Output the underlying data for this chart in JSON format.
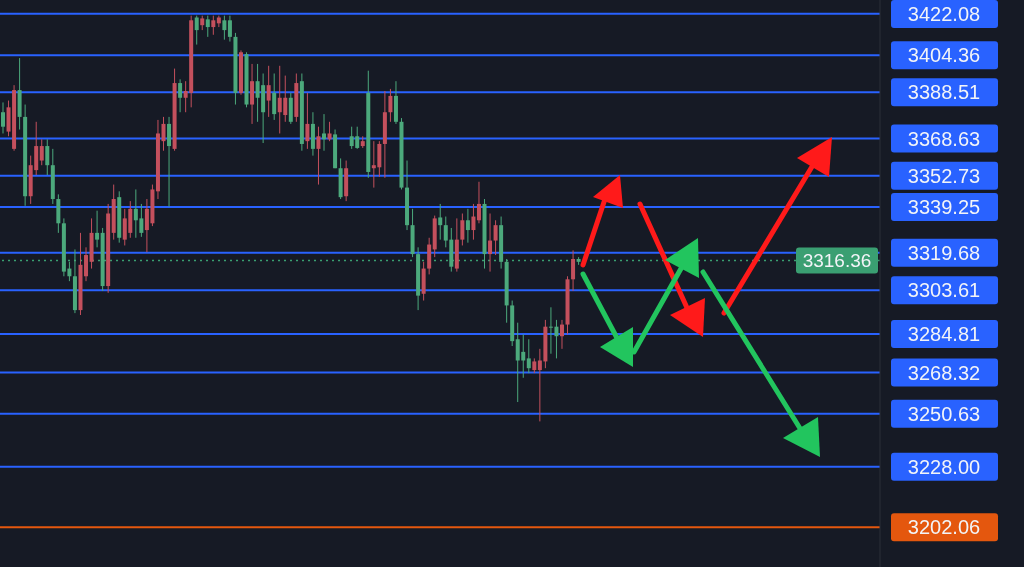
{
  "chart_data": {
    "type": "candlestick",
    "categories": [
      null,
      null,
      null,
      null,
      null,
      null,
      null,
      null,
      null,
      null,
      null,
      null,
      null,
      null,
      null,
      null,
      null,
      null,
      null,
      null,
      null,
      null,
      null,
      null,
      null,
      null,
      null,
      null,
      null,
      null,
      null,
      null,
      null,
      null,
      null,
      null,
      null,
      null,
      null,
      null,
      null,
      null,
      null,
      null,
      null,
      null,
      null,
      null,
      null,
      null,
      null,
      null,
      null,
      null,
      null,
      null,
      null,
      null,
      null,
      null,
      null,
      null,
      null,
      null,
      null,
      null,
      null,
      null,
      null,
      null,
      null,
      null,
      null,
      null,
      null,
      null,
      null,
      null,
      null,
      null,
      null,
      null,
      null,
      null,
      null,
      null,
      null,
      null,
      null,
      null,
      null,
      null,
      null,
      null,
      null,
      null,
      null,
      null,
      null,
      null,
      null,
      null,
      null,
      null,
      null,
      null,
      null,
      null,
      null,
      null,
      null,
      null,
      null,
      null,
      null,
      null,
      null,
      null,
      null,
      null,
      null,
      null,
      null,
      null,
      null,
      null,
      null,
      null,
      null,
      null,
      null,
      null,
      null,
      null,
      null,
      null,
      null,
      null,
      null,
      null,
      null,
      null,
      null,
      null,
      null,
      null,
      null,
      null,
      null,
      null,
      null,
      null,
      null,
      null,
      null,
      null,
      null,
      null,
      null
    ],
    "ohlc": [
      [
        3373.7,
        3384.1,
        3370.8,
        3379.9
      ],
      [
        3382.0,
        3384.9,
        3369.6,
        3371.6
      ],
      [
        3389.4,
        3391.5,
        3363.4,
        3364.2
      ],
      [
        3377.9,
        3403.1,
        3372.5,
        3389.4
      ],
      [
        3343.9,
        3383.2,
        3339.8,
        3377.9
      ],
      [
        3357.2,
        3361.3,
        3340.6,
        3343.9
      ],
      [
        3365.4,
        3375.8,
        3353.0,
        3355.1
      ],
      [
        3365.4,
        3368.3,
        3357.2,
        3359.2
      ],
      [
        3357.2,
        3368.3,
        3353.0,
        3365.4
      ],
      [
        3342.7,
        3364.2,
        3340.6,
        3357.2
      ],
      [
        3332.3,
        3344.7,
        3328.2,
        3342.7
      ],
      [
        3311.6,
        3334.4,
        3309.6,
        3332.3
      ],
      [
        3309.6,
        3315.8,
        3307.5,
        3312.9
      ],
      [
        3295.1,
        3321.1,
        3293.8,
        3309.6
      ],
      [
        3314.5,
        3328.2,
        3293.0,
        3295.1
      ],
      [
        3318.7,
        3322.0,
        3307.5,
        3309.6
      ],
      [
        3328.2,
        3334.4,
        3312.9,
        3315.8
      ],
      [
        3325.3,
        3337.7,
        3322.0,
        3328.2
      ],
      [
        3305.4,
        3330.3,
        3303.3,
        3328.2
      ],
      [
        3336.5,
        3340.6,
        3302.5,
        3305.4
      ],
      [
        3342.7,
        3348.9,
        3325.3,
        3328.2
      ],
      [
        3326.1,
        3346.0,
        3324.0,
        3343.5
      ],
      [
        3334.4,
        3338.5,
        3322.8,
        3325.3
      ],
      [
        3338.5,
        3341.8,
        3326.1,
        3328.2
      ],
      [
        3333.6,
        3346.8,
        3326.1,
        3338.5
      ],
      [
        3328.2,
        3340.6,
        3326.5,
        3334.4
      ],
      [
        3338.5,
        3342.7,
        3319.9,
        3329.4
      ],
      [
        3346.8,
        3348.9,
        3331.1,
        3332.3
      ],
      [
        3370.8,
        3376.6,
        3342.7,
        3346.0
      ],
      [
        3374.9,
        3377.9,
        3363.4,
        3367.5
      ],
      [
        3365.4,
        3377.9,
        3339.4,
        3374.9
      ],
      [
        3392.4,
        3398.6,
        3363.4,
        3364.2
      ],
      [
        3386.1,
        3394.0,
        3379.9,
        3392.4
      ],
      [
        3389.0,
        3393.2,
        3379.9,
        3386.1
      ],
      [
        3419.3,
        3421.3,
        3382.0,
        3388.2
      ],
      [
        3415.1,
        3421.3,
        3408.9,
        3420.5
      ],
      [
        3420.1,
        3421.3,
        3415.1,
        3417.2
      ],
      [
        3416.4,
        3421.3,
        3412.2,
        3419.7
      ],
      [
        3419.3,
        3421.3,
        3413.1,
        3416.4
      ],
      [
        3420.5,
        3421.3,
        3416.4,
        3418.0
      ],
      [
        3415.1,
        3421.3,
        3411.0,
        3419.3
      ],
      [
        3412.2,
        3421.3,
        3410.2,
        3419.3
      ],
      [
        3388.2,
        3413.9,
        3383.2,
        3412.2
      ],
      [
        3405.6,
        3406.4,
        3387.4,
        3388.2
      ],
      [
        3383.2,
        3405.6,
        3382.0,
        3404.8
      ],
      [
        3393.2,
        3400.6,
        3374.9,
        3383.2
      ],
      [
        3386.1,
        3400.6,
        3375.8,
        3393.2
      ],
      [
        3379.9,
        3396.5,
        3366.7,
        3391.5
      ],
      [
        3391.5,
        3399.8,
        3377.9,
        3384.9
      ],
      [
        3379.1,
        3396.5,
        3376.6,
        3388.2
      ],
      [
        3386.1,
        3399.8,
        3370.8,
        3379.9
      ],
      [
        3386.1,
        3395.6,
        3375.8,
        3378.7
      ],
      [
        3375.8,
        3388.2,
        3374.9,
        3386.1
      ],
      [
        3392.4,
        3396.5,
        3375.8,
        3377.9
      ],
      [
        3366.3,
        3396.5,
        3363.4,
        3393.2
      ],
      [
        3374.9,
        3388.2,
        3364.2,
        3367.5
      ],
      [
        3364.2,
        3379.9,
        3361.3,
        3374.9
      ],
      [
        3369.6,
        3373.7,
        3348.9,
        3364.2
      ],
      [
        3368.3,
        3379.1,
        3363.4,
        3370.8
      ],
      [
        3370.8,
        3375.8,
        3367.5,
        3368.3
      ],
      [
        3355.9,
        3372.5,
        3355.9,
        3370.4
      ],
      [
        3343.5,
        3360.1,
        3342.7,
        3355.9
      ],
      [
        3355.9,
        3359.2,
        3341.8,
        3343.9
      ],
      [
        3365.4,
        3373.7,
        3364.2,
        3369.6
      ],
      [
        3364.6,
        3373.7,
        3364.2,
        3369.6
      ],
      [
        3367.5,
        3369.6,
        3364.6,
        3365.4
      ],
      [
        3354.3,
        3397.7,
        3351.8,
        3388.2
      ],
      [
        3357.2,
        3367.5,
        3347.6,
        3355.9
      ],
      [
        3366.3,
        3367.5,
        3352.2,
        3356.3
      ],
      [
        3379.9,
        3389.0,
        3351.8,
        3366.3
      ],
      [
        3386.9,
        3389.9,
        3375.8,
        3379.9
      ],
      [
        3375.8,
        3393.2,
        3374.9,
        3386.9
      ],
      [
        3347.6,
        3377.4,
        3346.8,
        3375.8
      ],
      [
        3331.5,
        3359.2,
        3329.4,
        3347.6
      ],
      [
        3319.1,
        3338.5,
        3317.8,
        3331.5
      ],
      [
        3301.3,
        3322.0,
        3295.1,
        3319.1
      ],
      [
        3312.9,
        3315.8,
        3299.2,
        3302.1
      ],
      [
        3323.2,
        3326.1,
        3310.4,
        3312.9
      ],
      [
        3334.4,
        3335.6,
        3317.8,
        3321.1
      ],
      [
        3331.5,
        3340.6,
        3325.3,
        3334.8
      ],
      [
        3324.9,
        3335.2,
        3322.0,
        3331.5
      ],
      [
        3313.7,
        3330.3,
        3311.6,
        3325.3
      ],
      [
        3325.3,
        3334.4,
        3311.6,
        3312.9
      ],
      [
        3333.6,
        3336.5,
        3322.8,
        3325.3
      ],
      [
        3329.4,
        3338.5,
        3324.0,
        3333.6
      ],
      [
        3335.2,
        3340.6,
        3325.3,
        3329.4
      ],
      [
        3340.6,
        3350.1,
        3332.3,
        3333.6
      ],
      [
        3319.1,
        3342.7,
        3312.9,
        3340.6
      ],
      [
        3324.9,
        3336.5,
        3311.6,
        3319.1
      ],
      [
        3331.5,
        3333.6,
        3318.7,
        3324.9
      ],
      [
        3315.8,
        3335.2,
        3312.9,
        3331.5
      ],
      [
        3297.1,
        3317.0,
        3289.7,
        3315.8
      ],
      [
        3281.8,
        3299.2,
        3279.7,
        3297.1
      ],
      [
        3273.5,
        3289.7,
        3255.7,
        3282.6
      ],
      [
        3273.5,
        3284.7,
        3266.1,
        3277.2
      ],
      [
        3270.2,
        3282.6,
        3268.1,
        3274.4
      ],
      [
        3273.1,
        3274.4,
        3268.1,
        3269.4
      ],
      [
        3273.5,
        3278.5,
        3247.4,
        3269.4
      ],
      [
        3288.0,
        3290.9,
        3270.2,
        3273.1
      ],
      [
        3287.6,
        3296.3,
        3276.4,
        3288.0
      ],
      [
        3283.9,
        3290.9,
        3274.4,
        3288.0
      ],
      [
        3288.9,
        3290.9,
        3278.5,
        3283.9
      ],
      [
        3308.3,
        3309.6,
        3284.7,
        3288.9
      ],
      [
        3317.0,
        3320.7,
        3303.3,
        3308.3
      ],
      [
        3315.8,
        3317.8,
        3314.5,
        3317.0
      ],
      null,
      null,
      null,
      null,
      null,
      null,
      null,
      null,
      null,
      null,
      null,
      null,
      null,
      null,
      null,
      null,
      null,
      null,
      null,
      null,
      null,
      null,
      null,
      null,
      null,
      null,
      null,
      null,
      null,
      null,
      null,
      null,
      null,
      null,
      null,
      null,
      null,
      null,
      null,
      null,
      null,
      null,
      null,
      null,
      null,
      null,
      null,
      null,
      null,
      null,
      null,
      null,
      null,
      null
    ],
    "colors": [
      "#4ca97c",
      "#c4505d",
      "#c4505d",
      "#4ca97c",
      "#4ca97c",
      "#c4505d",
      "#c4505d",
      "#c4505d",
      "#4ca97c",
      "#4ca97c",
      "#4ca97c",
      "#4ca97c",
      "#4ca97c",
      "#4ca97c",
      "#c4505d",
      "#c4505d",
      "#c4505d",
      "#4ca97c",
      "#4ca97c",
      "#c4505d",
      "#c4505d",
      "#4ca97c",
      "#c4505d",
      "#c4505d",
      "#4ca97c",
      "#4ca97c",
      "#c4505d",
      "#c4505d",
      "#c4505d",
      "#c4505d",
      "#4ca97c",
      "#c4505d",
      "#4ca97c",
      "#c4505d",
      "#c4505d",
      "#4ca97c",
      "#c4505d",
      "#4ca97c",
      "#c4505d",
      "#c4505d",
      "#4ca97c",
      "#4ca97c",
      "#4ca97c",
      "#c4505d",
      "#4ca97c",
      "#c4505d",
      "#4ca97c",
      "#4ca97c",
      "#c4505d",
      "#4ca97c",
      "#c4505d",
      "#c4505d",
      "#4ca97c",
      "#c4505d",
      "#4ca97c",
      "#c4505d",
      "#4ca97c",
      "#c4505d",
      "#4ca97c",
      "#c4505d",
      "#4ca97c",
      "#4ca97c",
      "#c4505d",
      "#4ca97c",
      "#4ca97c",
      "#c4505d",
      "#4ca97c",
      "#c4505d",
      "#c4505d",
      "#c4505d",
      "#c4505d",
      "#4ca97c",
      "#4ca97c",
      "#4ca97c",
      "#4ca97c",
      "#4ca97c",
      "#c4505d",
      "#c4505d",
      "#c4505d",
      "#4ca97c",
      "#4ca97c",
      "#4ca97c",
      "#c4505d",
      "#c4505d",
      "#4ca97c",
      "#c4505d",
      "#c4505d",
      "#4ca97c",
      "#c4505d",
      "#c4505d",
      "#4ca97c",
      "#4ca97c",
      "#4ca97c",
      "#4ca97c",
      "#4ca97c",
      "#4ca97c",
      "#c4505d",
      "#c4505d",
      "#c4505d",
      "#4ca97c",
      "#4ca97c",
      "#c4505d",
      "#c4505d",
      "#c4505d",
      "#4ca97c",
      null,
      null,
      null,
      null,
      null,
      null,
      null,
      null,
      null,
      null,
      null,
      null,
      null,
      null,
      null,
      null,
      null,
      null,
      null,
      null,
      null,
      null,
      null,
      null,
      null,
      null,
      null,
      null,
      null,
      null,
      null,
      null,
      null,
      null,
      null,
      null,
      null,
      null,
      null,
      null,
      null,
      null,
      null,
      null,
      null,
      null,
      null,
      null,
      null,
      null,
      null,
      null,
      null,
      null
    ],
    "ylim": [
      3185,
      3428
    ],
    "yticks": [
      3422.08,
      3404.36,
      3388.51,
      3368.63,
      3352.73,
      3339.25,
      3319.68,
      3303.61,
      3284.81,
      3268.32,
      3250.63,
      {
        "value": 3228,
        "label": "3228.00"
      },
      3202.06
    ],
    "tick_labels": "y",
    "ref_lines": [
      {
        "axis": "y",
        "value": 3422.08,
        "color": "#2962ff"
      },
      {
        "axis": "y",
        "value": 3404.36,
        "color": "#2962ff"
      },
      {
        "axis": "y",
        "value": 3388.51,
        "color": "#2962ff"
      },
      {
        "axis": "y",
        "value": 3368.63,
        "color": "#2962ff"
      },
      {
        "axis": "y",
        "value": 3352.73,
        "color": "#2962ff"
      },
      {
        "axis": "y",
        "value": 3339.25,
        "color": "#2962ff"
      },
      {
        "axis": "y",
        "value": 3319.68,
        "color": "#2962ff"
      },
      {
        "axis": "y",
        "value": 3316.36,
        "label": "3316.36",
        "color": "#3a9f72",
        "line_style": "dotted"
      },
      {
        "axis": "y",
        "value": 3303.61,
        "color": "#2962ff"
      },
      {
        "axis": "y",
        "value": 3284.81,
        "color": "#2962ff"
      },
      {
        "axis": "y",
        "value": 3268.32,
        "color": "#2962ff"
      },
      {
        "axis": "y",
        "value": 3250.63,
        "color": "#2962ff"
      },
      {
        "axis": "y",
        "value": 3228.0,
        "color": "#2962ff"
      },
      {
        "axis": "y",
        "value": 3202.06,
        "color": "#e4570e"
      }
    ]
  }
}
